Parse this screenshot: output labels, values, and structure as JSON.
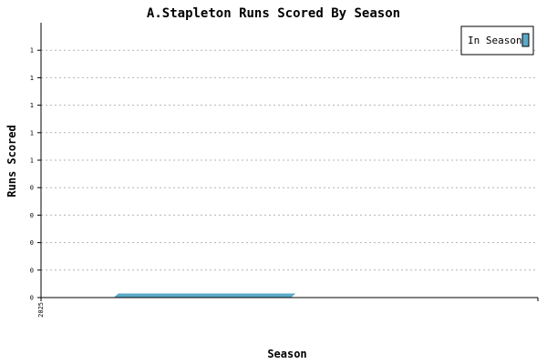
{
  "chart_data": {
    "type": "area",
    "title": "A.Stapleton Runs Scored By Season",
    "xlabel": "Season",
    "ylabel": "Runs Scored",
    "x_tick_labels": [
      "2025"
    ],
    "y_tick_labels": [
      "0",
      "0",
      "0",
      "0",
      "0",
      "1",
      "1",
      "1",
      "1",
      "1"
    ],
    "ylim": [
      0,
      1
    ],
    "grid": true,
    "legend_position": "top-right",
    "series": [
      {
        "name": "In Season",
        "x": [
          "2025"
        ],
        "values": [
          0
        ],
        "color": "#5aaac8"
      }
    ]
  }
}
